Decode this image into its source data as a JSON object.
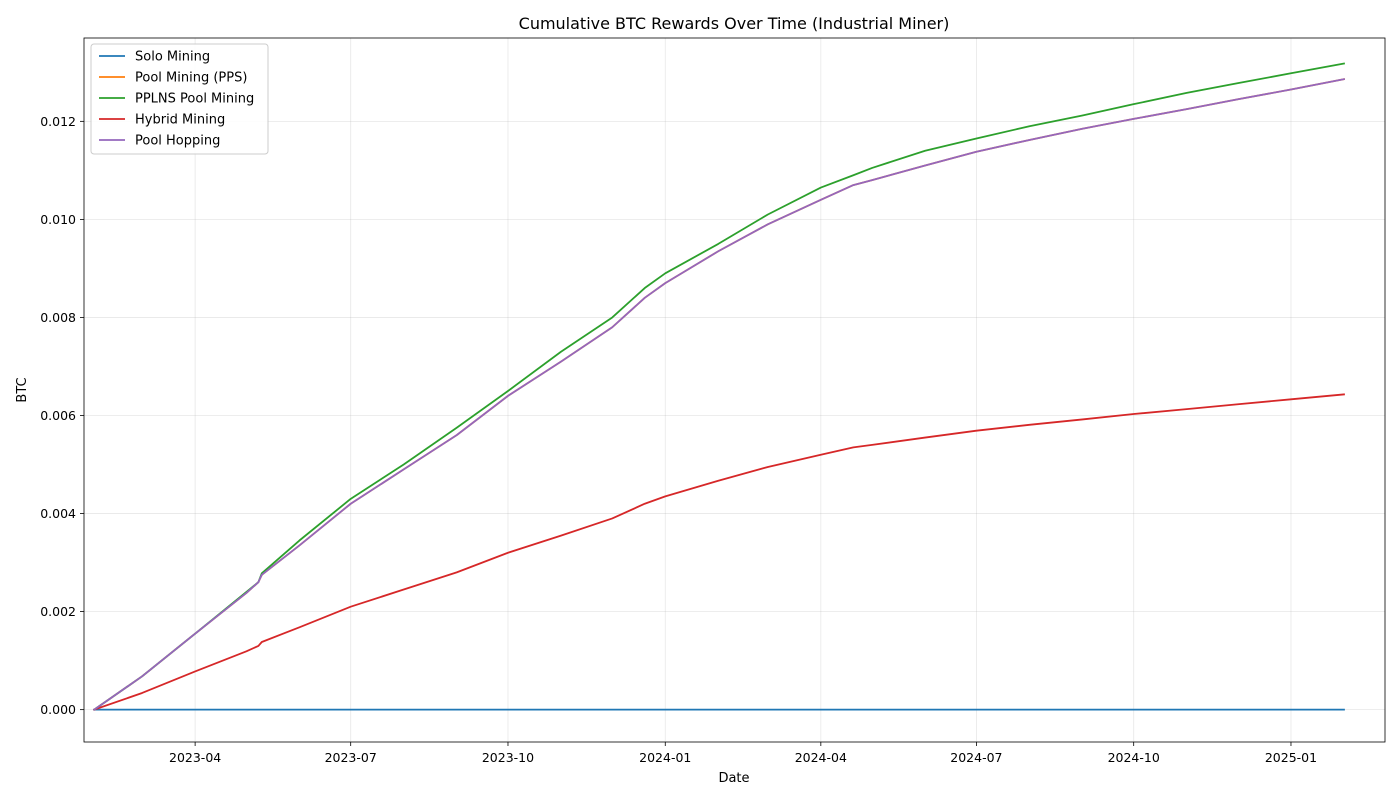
{
  "chart_data": {
    "type": "line",
    "title": "Cumulative BTC Rewards Over Time (Industrial Miner)",
    "xlabel": "Date",
    "ylabel": "BTC",
    "x_axis": {
      "type": "date",
      "range": [
        "2023-01-26",
        "2025-02-25"
      ],
      "ticks": [
        {
          "date": "2023-04-01",
          "label": "2023-04"
        },
        {
          "date": "2023-07-01",
          "label": "2023-07"
        },
        {
          "date": "2023-10-01",
          "label": "2023-10"
        },
        {
          "date": "2024-01-01",
          "label": "2024-01"
        },
        {
          "date": "2024-04-01",
          "label": "2024-04"
        },
        {
          "date": "2024-07-01",
          "label": "2024-07"
        },
        {
          "date": "2024-10-01",
          "label": "2024-10"
        },
        {
          "date": "2025-01-01",
          "label": "2025-01"
        }
      ]
    },
    "y_axis": {
      "range": [
        -0.00066,
        0.0137
      ],
      "ticks": [
        {
          "value": 0.0,
          "label": "0.000"
        },
        {
          "value": 0.002,
          "label": "0.002"
        },
        {
          "value": 0.004,
          "label": "0.004"
        },
        {
          "value": 0.006,
          "label": "0.006"
        },
        {
          "value": 0.008,
          "label": "0.008"
        },
        {
          "value": 0.01,
          "label": "0.010"
        },
        {
          "value": 0.012,
          "label": "0.012"
        }
      ]
    },
    "grid": true,
    "legend_position": "top-left",
    "series": [
      {
        "name": "Solo Mining",
        "color": "#1f77b4",
        "points": [
          [
            "2023-02-01",
            0.0
          ],
          [
            "2025-02-01",
            0.0
          ]
        ]
      },
      {
        "name": "Pool Mining (PPS)",
        "color": "#ff7f0e",
        "points": [
          [
            "2023-02-01",
            0.0
          ],
          [
            "2023-03-01",
            0.00068
          ],
          [
            "2023-04-01",
            0.00155
          ],
          [
            "2023-05-01",
            0.00238
          ],
          [
            "2023-05-08",
            0.0026
          ],
          [
            "2023-05-10",
            0.00275
          ],
          [
            "2023-06-01",
            0.00335
          ],
          [
            "2023-07-01",
            0.0042
          ],
          [
            "2023-08-01",
            0.0049
          ],
          [
            "2023-09-01",
            0.0056
          ],
          [
            "2023-10-01",
            0.0064
          ],
          [
            "2023-11-01",
            0.0071
          ],
          [
            "2023-12-01",
            0.0078
          ],
          [
            "2023-12-20",
            0.0084
          ],
          [
            "2024-01-01",
            0.0087
          ],
          [
            "2024-02-01",
            0.00935
          ],
          [
            "2024-03-01",
            0.0099
          ],
          [
            "2024-04-01",
            0.0104
          ],
          [
            "2024-04-20",
            0.0107
          ],
          [
            "2024-05-01",
            0.0108
          ],
          [
            "2024-06-01",
            0.0111
          ],
          [
            "2024-07-01",
            0.01138
          ],
          [
            "2024-08-01",
            0.01162
          ],
          [
            "2024-09-01",
            0.01185
          ],
          [
            "2024-10-01",
            0.01205
          ],
          [
            "2024-11-01",
            0.01225
          ],
          [
            "2024-12-01",
            0.01245
          ],
          [
            "2025-01-01",
            0.01265
          ],
          [
            "2025-02-01",
            0.01286
          ]
        ]
      },
      {
        "name": "PPLNS Pool Mining",
        "color": "#2ca02c",
        "points": [
          [
            "2023-02-01",
            0.0
          ],
          [
            "2023-03-01",
            0.00068
          ],
          [
            "2023-04-01",
            0.00155
          ],
          [
            "2023-05-01",
            0.0024
          ],
          [
            "2023-05-08",
            0.0026
          ],
          [
            "2023-05-10",
            0.00278
          ],
          [
            "2023-06-01",
            0.00345
          ],
          [
            "2023-07-01",
            0.0043
          ],
          [
            "2023-08-01",
            0.005
          ],
          [
            "2023-09-01",
            0.00575
          ],
          [
            "2023-10-01",
            0.0065
          ],
          [
            "2023-11-01",
            0.0073
          ],
          [
            "2023-12-01",
            0.008
          ],
          [
            "2023-12-20",
            0.0086
          ],
          [
            "2024-01-01",
            0.0089
          ],
          [
            "2024-02-01",
            0.0095
          ],
          [
            "2024-03-01",
            0.0101
          ],
          [
            "2024-04-01",
            0.01065
          ],
          [
            "2024-04-20",
            0.0109
          ],
          [
            "2024-05-01",
            0.01105
          ],
          [
            "2024-06-01",
            0.0114
          ],
          [
            "2024-07-01",
            0.01165
          ],
          [
            "2024-08-01",
            0.0119
          ],
          [
            "2024-09-01",
            0.01212
          ],
          [
            "2024-10-01",
            0.01235
          ],
          [
            "2024-11-01",
            0.01258
          ],
          [
            "2024-12-01",
            0.01278
          ],
          [
            "2025-01-01",
            0.01298
          ],
          [
            "2025-02-01",
            0.01318
          ]
        ]
      },
      {
        "name": "Hybrid Mining",
        "color": "#d62728",
        "points": [
          [
            "2023-02-01",
            0.0
          ],
          [
            "2023-03-01",
            0.00034
          ],
          [
            "2023-04-01",
            0.00078
          ],
          [
            "2023-05-01",
            0.00119
          ],
          [
            "2023-05-08",
            0.0013
          ],
          [
            "2023-05-10",
            0.00138
          ],
          [
            "2023-06-01",
            0.00168
          ],
          [
            "2023-07-01",
            0.0021
          ],
          [
            "2023-08-01",
            0.00245
          ],
          [
            "2023-09-01",
            0.0028
          ],
          [
            "2023-10-01",
            0.0032
          ],
          [
            "2023-11-01",
            0.00355
          ],
          [
            "2023-12-01",
            0.0039
          ],
          [
            "2023-12-20",
            0.0042
          ],
          [
            "2024-01-01",
            0.00435
          ],
          [
            "2024-02-01",
            0.00467
          ],
          [
            "2024-03-01",
            0.00495
          ],
          [
            "2024-04-01",
            0.0052
          ],
          [
            "2024-04-20",
            0.00535
          ],
          [
            "2024-05-01",
            0.0054
          ],
          [
            "2024-06-01",
            0.00555
          ],
          [
            "2024-07-01",
            0.00569
          ],
          [
            "2024-08-01",
            0.00581
          ],
          [
            "2024-09-01",
            0.00592
          ],
          [
            "2024-10-01",
            0.00603
          ],
          [
            "2024-11-01",
            0.00613
          ],
          [
            "2024-12-01",
            0.00623
          ],
          [
            "2025-01-01",
            0.00633
          ],
          [
            "2025-02-01",
            0.00643
          ]
        ]
      },
      {
        "name": "Pool Hopping",
        "color": "#9467bd",
        "points": [
          [
            "2023-02-01",
            0.0
          ],
          [
            "2023-03-01",
            0.00068
          ],
          [
            "2023-04-01",
            0.00155
          ],
          [
            "2023-05-01",
            0.00238
          ],
          [
            "2023-05-08",
            0.0026
          ],
          [
            "2023-05-10",
            0.00275
          ],
          [
            "2023-06-01",
            0.00335
          ],
          [
            "2023-07-01",
            0.0042
          ],
          [
            "2023-08-01",
            0.0049
          ],
          [
            "2023-09-01",
            0.0056
          ],
          [
            "2023-10-01",
            0.0064
          ],
          [
            "2023-11-01",
            0.0071
          ],
          [
            "2023-12-01",
            0.0078
          ],
          [
            "2023-12-20",
            0.0084
          ],
          [
            "2024-01-01",
            0.0087
          ],
          [
            "2024-02-01",
            0.00935
          ],
          [
            "2024-03-01",
            0.0099
          ],
          [
            "2024-04-01",
            0.0104
          ],
          [
            "2024-04-20",
            0.0107
          ],
          [
            "2024-05-01",
            0.0108
          ],
          [
            "2024-06-01",
            0.0111
          ],
          [
            "2024-07-01",
            0.01138
          ],
          [
            "2024-08-01",
            0.01162
          ],
          [
            "2024-09-01",
            0.01185
          ],
          [
            "2024-10-01",
            0.01205
          ],
          [
            "2024-11-01",
            0.01225
          ],
          [
            "2024-12-01",
            0.01245
          ],
          [
            "2025-01-01",
            0.01265
          ],
          [
            "2025-02-01",
            0.01286
          ]
        ]
      }
    ]
  }
}
